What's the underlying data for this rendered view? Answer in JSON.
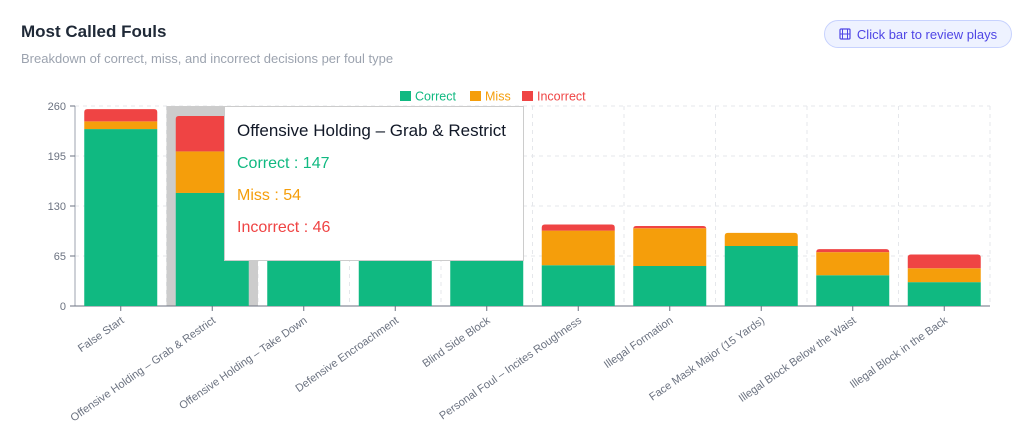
{
  "header": {
    "title": "Most Called Fouls",
    "subtitle": "Breakdown of correct, miss, and incorrect decisions per foul type",
    "review_button_label": "Click bar to review plays",
    "review_button_icon": "film-icon"
  },
  "colors": {
    "correct": "#10b981",
    "miss": "#f59e0b",
    "incorrect": "#ef4444"
  },
  "chart_data": {
    "type": "bar",
    "stacked": true,
    "categories": [
      "False Start",
      "Offensive Holding – Grab & Restrict",
      "Offensive Holding – Take Down",
      "Defensive Encroachment",
      "Blind Side Block",
      "Personal Foul – Incites Roughness",
      "Illegal Formation",
      "Face Mask Major (15 Yards)",
      "Illegal Block Below the Waist",
      "Illegal Block in the Back"
    ],
    "series": [
      {
        "name": "Correct",
        "values": [
          230,
          147,
          150,
          140,
          130,
          53,
          52,
          78,
          40,
          31
        ]
      },
      {
        "name": "Miss",
        "values": [
          10,
          54,
          0,
          0,
          0,
          45,
          49,
          17,
          30,
          18
        ]
      },
      {
        "name": "Incorrect",
        "values": [
          16,
          46,
          0,
          0,
          0,
          8,
          3,
          0,
          4,
          18
        ]
      }
    ],
    "yticks": [
      0,
      65,
      130,
      195,
      260
    ],
    "ylim": [
      0,
      260
    ],
    "grid": true,
    "legend": "top-center",
    "highlighted_index": 1,
    "tooltip": {
      "title": "Offensive Holding – Grab & Restrict",
      "rows": [
        {
          "label": "Correct : 147"
        },
        {
          "label": "Miss : 54"
        },
        {
          "label": "Incorrect : 46"
        }
      ]
    }
  }
}
